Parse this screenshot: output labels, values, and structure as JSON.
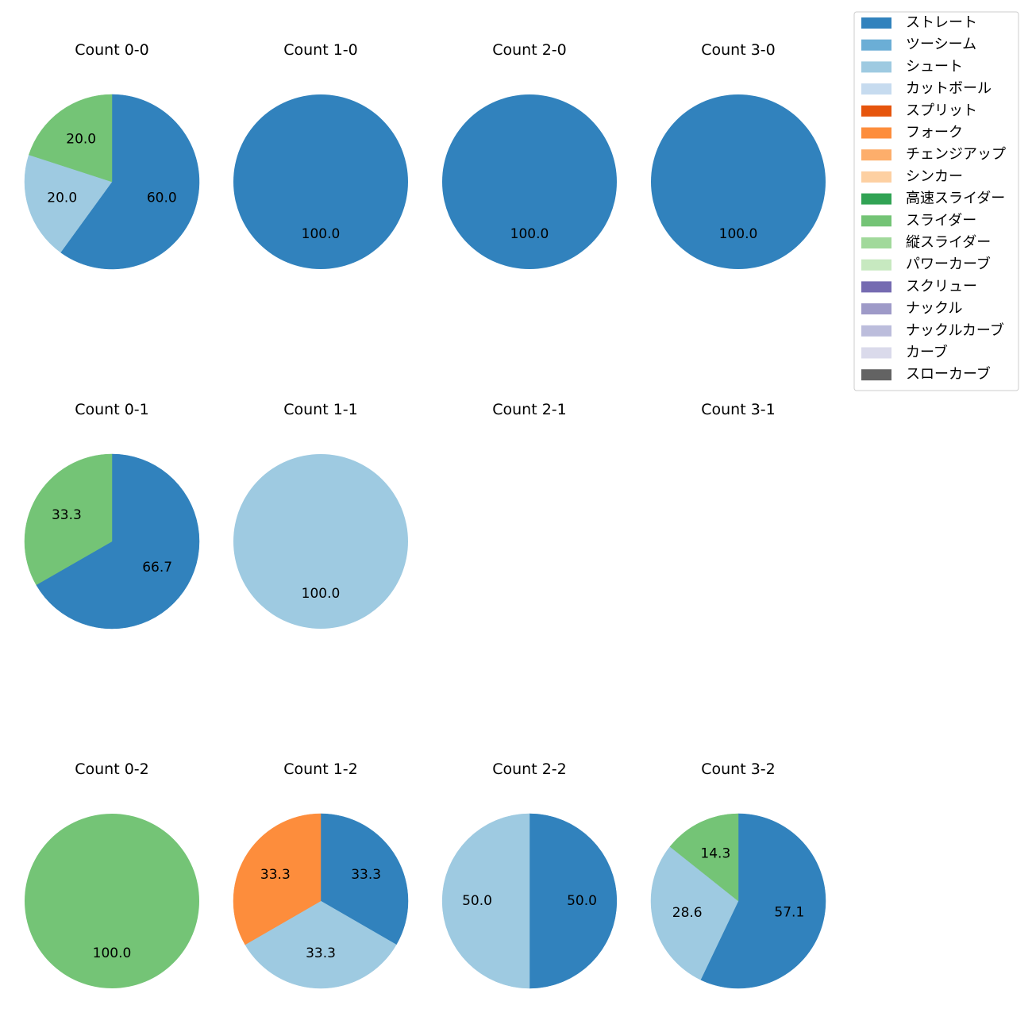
{
  "chart_data": {
    "type": "pie",
    "title": "",
    "legend_position": "top-right",
    "categories": [
      "ストレート",
      "ツーシーム",
      "シュート",
      "カットボール",
      "スプリット",
      "フォーク",
      "チェンジアップ",
      "シンカー",
      "高速スライダー",
      "スライダー",
      "縦スライダー",
      "パワーカーブ",
      "スクリュー",
      "ナックル",
      "ナックルカーブ",
      "カーブ",
      "スローカーブ"
    ],
    "colors": [
      "#3182bd",
      "#6baed6",
      "#9ecae1",
      "#c6dbef",
      "#e6550d",
      "#fd8d3c",
      "#fdae6b",
      "#fdd0a2",
      "#31a354",
      "#74c476",
      "#a1d99b",
      "#c7e9c0",
      "#756bb1",
      "#9e9ac8",
      "#bcbddc",
      "#dadaeb",
      "#636363"
    ],
    "panels": [
      {
        "title": "Count 0-0",
        "slices": [
          {
            "category": "ストレート",
            "value": 60.0,
            "label": "60.0"
          },
          {
            "category": "シュート",
            "value": 20.0,
            "label": "20.0"
          },
          {
            "category": "スライダー",
            "value": 20.0,
            "label": "20.0"
          }
        ]
      },
      {
        "title": "Count 1-0",
        "slices": [
          {
            "category": "ストレート",
            "value": 100.0,
            "label": "100.0"
          }
        ]
      },
      {
        "title": "Count 2-0",
        "slices": [
          {
            "category": "ストレート",
            "value": 100.0,
            "label": "100.0"
          }
        ]
      },
      {
        "title": "Count 3-0",
        "slices": [
          {
            "category": "ストレート",
            "value": 100.0,
            "label": "100.0"
          }
        ]
      },
      {
        "title": "Count 0-1",
        "slices": [
          {
            "category": "ストレート",
            "value": 66.7,
            "label": "66.7"
          },
          {
            "category": "スライダー",
            "value": 33.3,
            "label": "33.3"
          }
        ]
      },
      {
        "title": "Count 1-1",
        "slices": [
          {
            "category": "シュート",
            "value": 100.0,
            "label": "100.0"
          }
        ]
      },
      {
        "title": "Count 2-1",
        "slices": []
      },
      {
        "title": "Count 3-1",
        "slices": []
      },
      {
        "title": "Count 0-2",
        "slices": [
          {
            "category": "スライダー",
            "value": 100.0,
            "label": "100.0"
          }
        ]
      },
      {
        "title": "Count 1-2",
        "slices": [
          {
            "category": "ストレート",
            "value": 33.3,
            "label": "33.3"
          },
          {
            "category": "シュート",
            "value": 33.3,
            "label": "33.3"
          },
          {
            "category": "フォーク",
            "value": 33.3,
            "label": "33.3"
          }
        ]
      },
      {
        "title": "Count 2-2",
        "slices": [
          {
            "category": "ストレート",
            "value": 50.0,
            "label": "50.0"
          },
          {
            "category": "シュート",
            "value": 50.0,
            "label": "50.0"
          }
        ]
      },
      {
        "title": "Count 3-2",
        "slices": [
          {
            "category": "ストレート",
            "value": 57.1,
            "label": "57.1"
          },
          {
            "category": "シュート",
            "value": 28.6,
            "label": "28.6"
          },
          {
            "category": "スライダー",
            "value": 14.3,
            "label": "14.3"
          }
        ]
      }
    ]
  }
}
